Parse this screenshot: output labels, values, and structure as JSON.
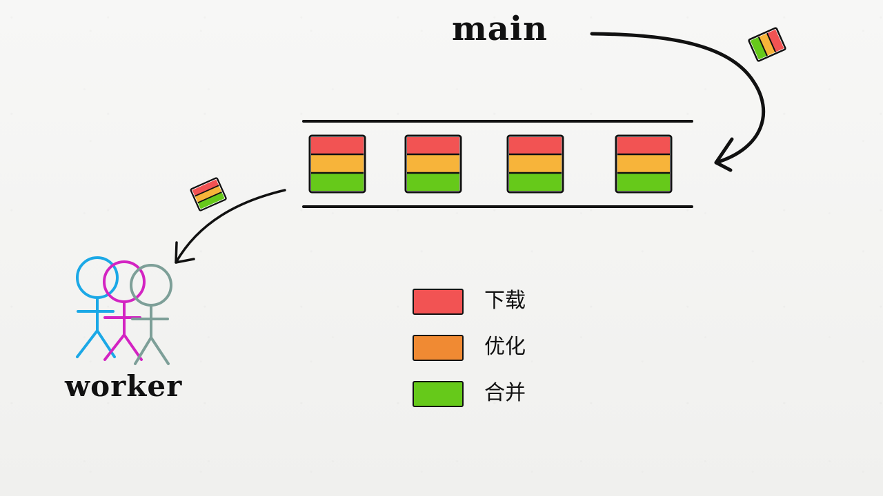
{
  "labels": {
    "main": "main",
    "worker": "worker"
  },
  "legend": [
    {
      "label": "下载",
      "color": "#f25353"
    },
    {
      "label": "优化",
      "color": "#f08a33"
    },
    {
      "label": "合并",
      "color": "#66c91a"
    }
  ],
  "colors": {
    "stroke": "#111111",
    "queue_red": "#f25353",
    "queue_orange": "#f7b43a",
    "queue_green": "#66c91a",
    "worker_blue": "#1ba8e6",
    "worker_magenta": "#d324c2",
    "worker_gray": "#7d9f98"
  },
  "icons": {
    "incoming_task": "task-icon",
    "outgoing_task": "task-icon",
    "worker_group": "stick-figures-icon"
  }
}
